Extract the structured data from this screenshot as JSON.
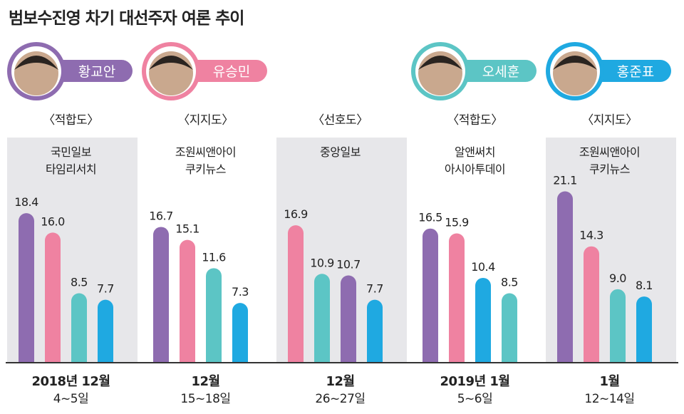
{
  "chart_data": {
    "type": "bar",
    "title": "범보수진영 차기 대선주자 여론 추이",
    "candidates": [
      {
        "name": "황교안",
        "color": "#8e6cb0"
      },
      {
        "name": "유승민",
        "color": "#ef82a1"
      },
      {
        "name": "오세훈",
        "color": "#5cc5c5"
      },
      {
        "name": "홍준표",
        "color": "#1fa9e1"
      }
    ],
    "groups": [
      {
        "metric": "〈적합도〉",
        "source": [
          "국민일보",
          "타임리서치"
        ],
        "date_main": "2018년 12월",
        "date_sub": "4~5일",
        "bars": [
          {
            "candidate": "황교안",
            "value": 18.4
          },
          {
            "candidate": "유승민",
            "value": 16.0
          },
          {
            "candidate": "오세훈",
            "value": 8.5
          },
          {
            "candidate": "홍준표",
            "value": 7.7
          }
        ]
      },
      {
        "metric": "〈지지도〉",
        "source": [
          "조원씨앤아이",
          "쿠키뉴스"
        ],
        "date_main": "12월",
        "date_sub": "15~18일",
        "bars": [
          {
            "candidate": "황교안",
            "value": 16.7
          },
          {
            "candidate": "유승민",
            "value": 15.1
          },
          {
            "candidate": "오세훈",
            "value": 11.6
          },
          {
            "candidate": "홍준표",
            "value": 7.3
          }
        ]
      },
      {
        "metric": "〈선호도〉",
        "source": [
          "중앙일보"
        ],
        "date_main": "12월",
        "date_sub": "26~27일",
        "bars": [
          {
            "candidate": "유승민",
            "value": 16.9
          },
          {
            "candidate": "오세훈",
            "value": 10.9
          },
          {
            "candidate": "황교안",
            "value": 10.7
          },
          {
            "candidate": "홍준표",
            "value": 7.7
          }
        ]
      },
      {
        "metric": "〈적합도〉",
        "source": [
          "알앤써치",
          "아시아투데이"
        ],
        "date_main": "2019년 1월",
        "date_sub": "5~6일",
        "bars": [
          {
            "candidate": "황교안",
            "value": 16.5
          },
          {
            "candidate": "유승민",
            "value": 15.9
          },
          {
            "candidate": "홍준표",
            "value": 10.4
          },
          {
            "candidate": "오세훈",
            "value": 8.5
          }
        ]
      },
      {
        "metric": "〈지지도〉",
        "source": [
          "조원씨앤아이",
          "쿠키뉴스"
        ],
        "date_main": "1월",
        "date_sub": "12~14일",
        "bars": [
          {
            "candidate": "황교안",
            "value": 21.1
          },
          {
            "candidate": "유승민",
            "value": 14.3
          },
          {
            "candidate": "오세훈",
            "value": 9.0
          },
          {
            "candidate": "홍준표",
            "value": 8.1
          }
        ]
      }
    ],
    "ylim": [
      0,
      22
    ]
  }
}
